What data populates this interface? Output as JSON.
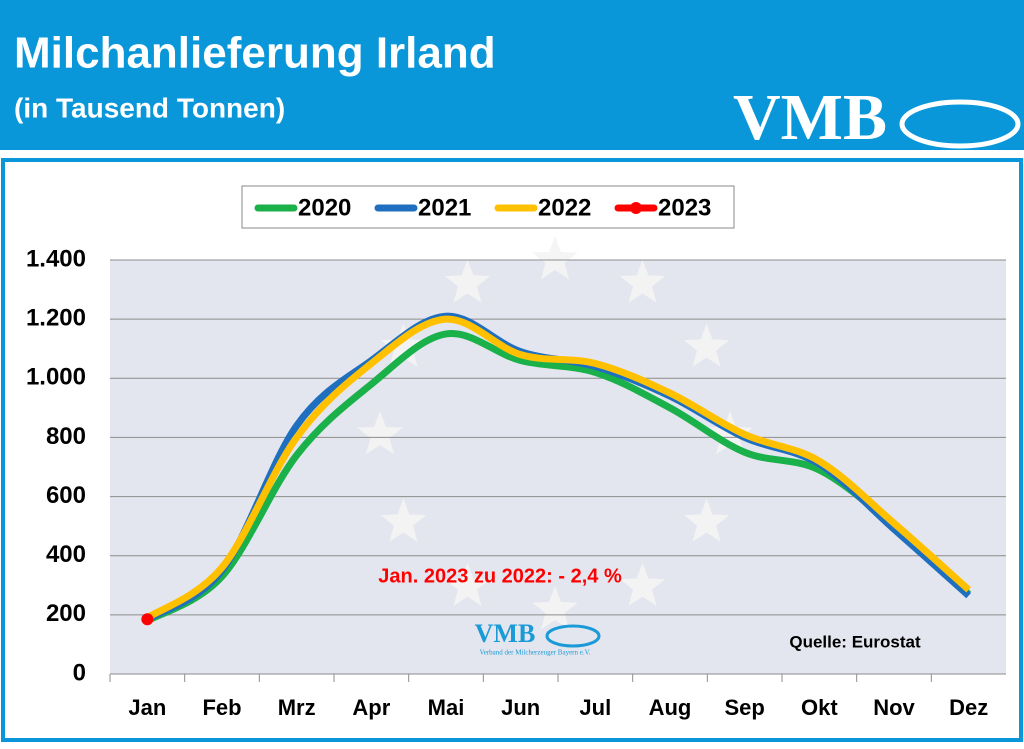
{
  "header": {
    "title": "Milchanlieferung Irland",
    "subtitle": "(in Tausend Tonnen)",
    "logo": "VMB"
  },
  "chart_data": {
    "type": "line",
    "categories": [
      "Jan",
      "Feb",
      "Mrz",
      "Apr",
      "Mai",
      "Jun",
      "Jul",
      "Aug",
      "Sep",
      "Okt",
      "Nov",
      "Dez"
    ],
    "series": [
      {
        "name": "2020",
        "color": "#1ab04a",
        "values": [
          180,
          330,
          740,
          980,
          1150,
          1060,
          1020,
          900,
          750,
          690,
          500,
          270
        ]
      },
      {
        "name": "2021",
        "color": "#1e6fc0",
        "values": [
          185,
          350,
          840,
          1060,
          1210,
          1090,
          1040,
          940,
          800,
          710,
          490,
          265
        ]
      },
      {
        "name": "2022",
        "color": "#ffc000",
        "values": [
          190,
          360,
          800,
          1050,
          1200,
          1080,
          1050,
          950,
          810,
          720,
          510,
          285
        ]
      },
      {
        "name": "2023",
        "color": "#ff0000",
        "values": [
          185,
          null,
          null,
          null,
          null,
          null,
          null,
          null,
          null,
          null,
          null,
          null
        ]
      }
    ],
    "ylim": [
      0,
      1400
    ],
    "yticks": [
      0,
      200,
      400,
      600,
      800,
      {
        "value": 1000,
        "label": "1.000"
      },
      {
        "value": 1200,
        "label": "1.200"
      },
      {
        "value": 1400,
        "label": "1.400"
      }
    ],
    "grid": true,
    "legend": "top",
    "annotations": [
      "Jan. 2023 zu 2022: - 2,4 %",
      "Quelle: Eurostat"
    ],
    "watermark": {
      "logo": "VMB",
      "text": "Verband der Milcherzeuger Bayern e.V."
    }
  }
}
